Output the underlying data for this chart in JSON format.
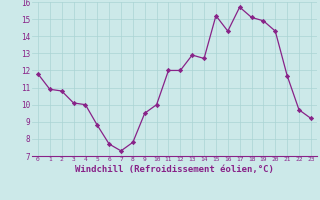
{
  "x": [
    0,
    1,
    2,
    3,
    4,
    5,
    6,
    7,
    8,
    9,
    10,
    11,
    12,
    13,
    14,
    15,
    16,
    17,
    18,
    19,
    20,
    21,
    22,
    23
  ],
  "y": [
    11.8,
    10.9,
    10.8,
    10.1,
    10.0,
    8.8,
    7.7,
    7.3,
    7.8,
    9.5,
    10.0,
    12.0,
    12.0,
    12.9,
    12.7,
    15.2,
    14.3,
    15.7,
    15.1,
    14.9,
    14.3,
    11.7,
    9.7,
    9.2
  ],
  "line_color": "#882288",
  "marker": "D",
  "marker_size": 2.2,
  "linewidth": 0.9,
  "xlabel": "Windchill (Refroidissement éolien,°C)",
  "xlabel_fontsize": 6.5,
  "bg_color": "#cce9e9",
  "grid_color": "#aad4d4",
  "tick_color": "#882288",
  "label_color": "#882288",
  "ylim": [
    7,
    16
  ],
  "yticks": [
    7,
    8,
    9,
    10,
    11,
    12,
    13,
    14,
    15,
    16
  ],
  "xticks": [
    0,
    1,
    2,
    3,
    4,
    5,
    6,
    7,
    8,
    9,
    10,
    11,
    12,
    13,
    14,
    15,
    16,
    17,
    18,
    19,
    20,
    21,
    22,
    23
  ]
}
